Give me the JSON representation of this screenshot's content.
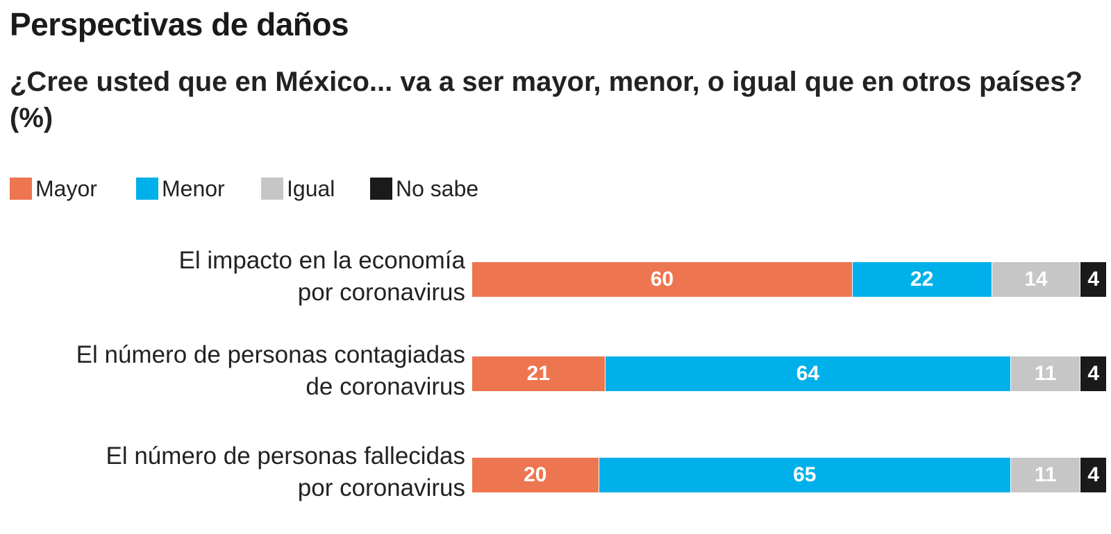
{
  "chart_data": {
    "type": "bar",
    "orientation": "horizontal",
    "stacked": true,
    "title": "Perspectivas de daños",
    "subtitle": "¿Cree usted que en México... va a ser mayor, menor, o igual que en otros países? (%)",
    "xlim": [
      0,
      100
    ],
    "legend_position": "top-left",
    "grid": false,
    "categories": [
      [
        "El impacto en la economía",
        "por coronavirus"
      ],
      [
        "El número de personas contagiadas",
        "de coronavirus"
      ],
      [
        "El número de personas fallecidas",
        "por coronavirus"
      ]
    ],
    "series": [
      {
        "name": "Mayor",
        "color": "#ED7650",
        "values": [
          60,
          21,
          20
        ]
      },
      {
        "name": "Menor",
        "color": "#00B0EA",
        "values": [
          22,
          64,
          65
        ]
      },
      {
        "name": "Igual",
        "color": "#C6C6C6",
        "values": [
          14,
          11,
          11
        ]
      },
      {
        "name": "No sabe",
        "color": "#1A1A1A",
        "values": [
          4,
          4,
          4
        ]
      }
    ]
  }
}
